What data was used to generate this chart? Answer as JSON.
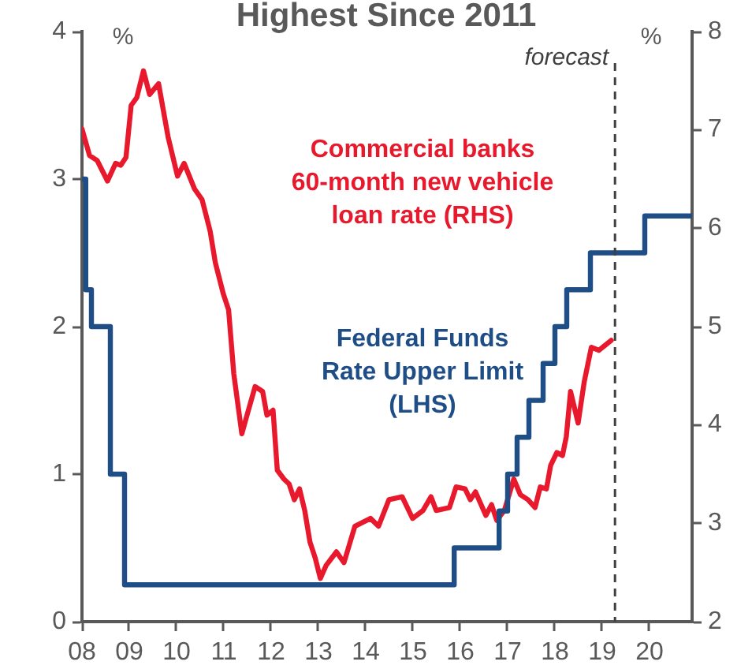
{
  "chart_data": {
    "type": "line",
    "title": "Highest Since 2011",
    "ylabel": "%",
    "y2label": "%",
    "xlim": [
      2008,
      2020.9
    ],
    "xticks": [
      {
        "value": 2008,
        "label": "08"
      },
      {
        "value": 2009,
        "label": "09"
      },
      {
        "value": 2010,
        "label": "10"
      },
      {
        "value": 2011,
        "label": "11"
      },
      {
        "value": 2012,
        "label": "12"
      },
      {
        "value": 2013,
        "label": "13"
      },
      {
        "value": 2014,
        "label": "14"
      },
      {
        "value": 2015,
        "label": "15"
      },
      {
        "value": 2016,
        "label": "16"
      },
      {
        "value": 2017,
        "label": "17"
      },
      {
        "value": 2018,
        "label": "18"
      },
      {
        "value": 2019,
        "label": "19"
      },
      {
        "value": 2020,
        "label": "20"
      }
    ],
    "ylim": [
      0,
      4
    ],
    "yticks": [
      0,
      1,
      2,
      3,
      4
    ],
    "y2lim": [
      2,
      8
    ],
    "y2ticks": [
      2,
      3,
      4,
      5,
      6,
      7,
      8
    ],
    "series": [
      {
        "name": "Commercial banks 60-month new vehicle loan rate (RHS)",
        "color": "#e8192c",
        "axis": "y2",
        "x": [
          2008.0,
          2008.16,
          2008.32,
          2008.54,
          2008.71,
          2008.82,
          2008.93,
          2009.04,
          2009.16,
          2009.3,
          2009.43,
          2009.62,
          2009.82,
          2010.02,
          2010.16,
          2010.38,
          2010.54,
          2010.71,
          2010.82,
          2010.99,
          2011.1,
          2011.21,
          2011.38,
          2011.49,
          2011.66,
          2011.82,
          2011.91,
          2012.04,
          2012.13,
          2012.27,
          2012.38,
          2012.49,
          2012.6,
          2012.71,
          2012.82,
          2012.93,
          2013.04,
          2013.16,
          2013.38,
          2013.54,
          2013.77,
          2014.1,
          2014.27,
          2014.49,
          2014.77,
          2014.99,
          2015.21,
          2015.38,
          2015.49,
          2015.77,
          2015.91,
          2016.1,
          2016.21,
          2016.32,
          2016.54,
          2016.66,
          2016.77,
          2016.93,
          2017.13,
          2017.27,
          2017.43,
          2017.58,
          2017.69,
          2017.82,
          2017.91,
          2018.04,
          2018.16,
          2018.24,
          2018.33,
          2018.49,
          2018.62,
          2018.77,
          2018.93,
          2019.19
        ],
        "values": [
          7.01,
          6.74,
          6.69,
          6.48,
          6.66,
          6.64,
          6.72,
          7.25,
          7.33,
          7.6,
          7.36,
          7.47,
          6.93,
          6.53,
          6.66,
          6.4,
          6.29,
          5.97,
          5.65,
          5.33,
          5.17,
          4.52,
          3.91,
          4.1,
          4.39,
          4.34,
          4.1,
          4.15,
          3.54,
          3.45,
          3.4,
          3.24,
          3.35,
          3.13,
          2.81,
          2.65,
          2.44,
          2.57,
          2.71,
          2.6,
          2.97,
          3.05,
          2.97,
          3.24,
          3.27,
          3.05,
          3.13,
          3.27,
          3.13,
          3.16,
          3.37,
          3.35,
          3.24,
          3.32,
          3.08,
          3.19,
          3.03,
          3.13,
          3.45,
          3.29,
          3.24,
          3.16,
          3.37,
          3.35,
          3.59,
          3.72,
          3.69,
          3.88,
          4.34,
          4.02,
          4.44,
          4.79,
          4.76,
          4.86
        ]
      },
      {
        "name": "Federal Funds Rate Upper Limit (LHS)",
        "color": "#1f4e87",
        "type": "step",
        "axis": "y",
        "x": [
          2008.0,
          2008.08,
          2008.2,
          2008.6,
          2008.75,
          2008.9,
          2015.87,
          2016.82,
          2017.0,
          2017.2,
          2017.45,
          2017.75,
          2018.0,
          2018.25,
          2018.5,
          2018.75,
          2019.9,
          2020.9
        ],
        "values": [
          3.0,
          2.25,
          2.0,
          1.0,
          1.0,
          0.25,
          0.5,
          0.75,
          1.0,
          1.25,
          1.5,
          1.75,
          2.0,
          2.25,
          2.25,
          2.5,
          2.75,
          2.75
        ]
      }
    ],
    "ref_lines": [
      {
        "axis": "x",
        "value": 2019.27,
        "label": "forecast",
        "line_style": "dashed",
        "color": "#404040"
      }
    ],
    "grid": false,
    "legend": false,
    "marker": "none"
  }
}
